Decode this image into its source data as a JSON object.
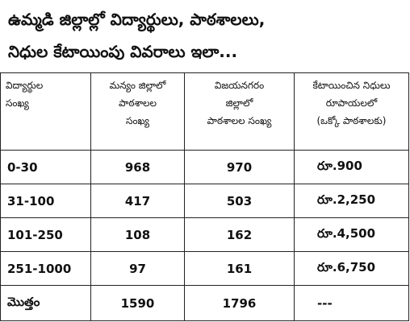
{
  "title": {
    "line1": "ఉమ్మడి జిల్లాల్లో విద్యార్థులు, పాఠశాలలు,",
    "line2": "నిధుల కేటాయింపు వివరాలు ఇలా..."
  },
  "table": {
    "headers": [
      [
        "విద్యార్థుల",
        "సంఖ్య"
      ],
      [
        "మన్యం జిల్లాలో",
        "పాఠశాలల",
        "సంఖ్య"
      ],
      [
        "విజయనగరం",
        "జిల్లాలో",
        "పాఠశాలల సంఖ్య"
      ],
      [
        "కేటాయించిన నిధులు",
        "రూపాయలలో",
        "(ఒక్కో పాఠశాలకు)"
      ]
    ],
    "rows": [
      [
        "0-30",
        "968",
        "970",
        "రూ.900"
      ],
      [
        "31-100",
        "417",
        "503",
        "రూ.2,250"
      ],
      [
        "101-250",
        "108",
        "162",
        "రూ.4,500"
      ],
      [
        "251-1000",
        "97",
        "161",
        "రూ.6,750"
      ],
      [
        "మొత్తం",
        "1590",
        "1796",
        "---"
      ]
    ]
  }
}
